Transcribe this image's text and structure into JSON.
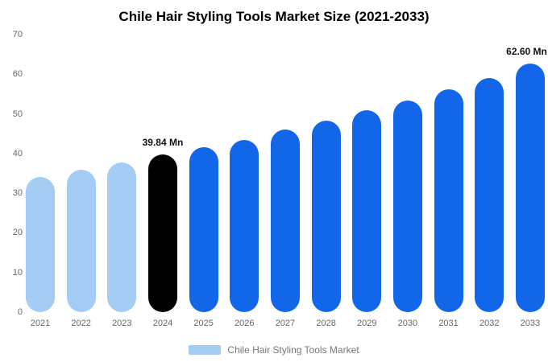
{
  "title": "Chile Hair Styling Tools Market Size (2021-2033)",
  "colors": {
    "light": "#a4ccf5",
    "primary": "#1266e8",
    "highlight": "#000000"
  },
  "legend": {
    "label": "Chile Hair Styling Tools Market",
    "swatch_color": "#a4ccf5"
  },
  "chart_data": {
    "type": "bar",
    "title": "Chile Hair Styling Tools Market Size (2021-2033)",
    "categories": [
      "2021",
      "2022",
      "2023",
      "2024",
      "2025",
      "2026",
      "2027",
      "2028",
      "2029",
      "2030",
      "2031",
      "2032",
      "2033"
    ],
    "values": [
      34.1,
      35.9,
      37.7,
      39.84,
      41.6,
      43.4,
      46.0,
      48.3,
      50.9,
      53.3,
      56.2,
      59.0,
      62.6
    ],
    "bar_roles": [
      "light",
      "light",
      "light",
      "highlight",
      "primary",
      "primary",
      "primary",
      "primary",
      "primary",
      "primary",
      "primary",
      "primary",
      "primary"
    ],
    "annotations": [
      {
        "category": "2024",
        "text": "39.84 Mn"
      },
      {
        "category": "2033",
        "text": "62.60 Mn"
      }
    ],
    "unit": "Mn",
    "xlabel": "",
    "ylabel": "",
    "ylim": [
      0,
      70
    ],
    "yticks": [
      0,
      10,
      20,
      30,
      40,
      50,
      60,
      70
    ],
    "grid": false,
    "legend_position": "bottom"
  }
}
